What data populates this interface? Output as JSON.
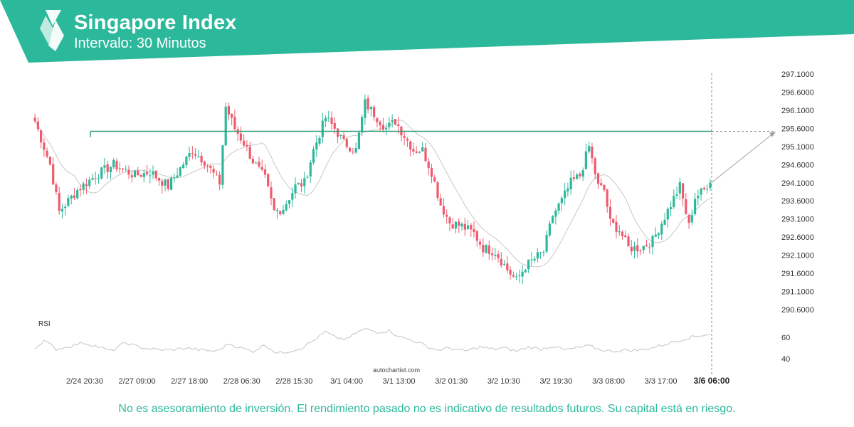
{
  "header": {
    "title": "Singapore Index",
    "subtitle": "Intervalo: 30 Minutos",
    "brand_color": "#2cb99b"
  },
  "chart_data": {
    "type": "candlestick",
    "y_ticks": [
      "297.1000",
      "296.6000",
      "296.1000",
      "295.6000",
      "295.1000",
      "294.6000",
      "294.1000",
      "293.6000",
      "293.1000",
      "292.6000",
      "292.1000",
      "291.6000",
      "291.1000",
      "290.6000"
    ],
    "ylim": [
      290.4,
      297.3
    ],
    "x_ticks": [
      "2/24 20:30",
      "2/27 09:00",
      "2/27 18:00",
      "2/28 06:30",
      "2/28 15:30",
      "3/1 04:00",
      "3/1 13:00",
      "3/2 01:30",
      "3/2 10:30",
      "3/2 19:30",
      "3/3 08:00",
      "3/3 17:00"
    ],
    "x_last_label": "3/6 06:00",
    "resistance_level": 295.52,
    "forecast_target": 295.5,
    "grid": false,
    "up_color": "#2cb99b",
    "down_color": "#ef5b6e",
    "close_anchors": [
      [
        0,
        295.8
      ],
      [
        5,
        294.6
      ],
      [
        8,
        293.3
      ],
      [
        14,
        293.9
      ],
      [
        20,
        294.3
      ],
      [
        26,
        294.6
      ],
      [
        33,
        294.3
      ],
      [
        38,
        294.4
      ],
      [
        44,
        294.0
      ],
      [
        48,
        294.5
      ],
      [
        52,
        295.0
      ],
      [
        56,
        294.7
      ],
      [
        61,
        294.1
      ],
      [
        63,
        296.2
      ],
      [
        66,
        295.6
      ],
      [
        69,
        295.2
      ],
      [
        72,
        294.7
      ],
      [
        76,
        294.2
      ],
      [
        79,
        293.3
      ],
      [
        82,
        293.4
      ],
      [
        86,
        294.0
      ],
      [
        89,
        294.1
      ],
      [
        92,
        295.0
      ],
      [
        96,
        295.9
      ],
      [
        99,
        295.6
      ],
      [
        102,
        295.2
      ],
      [
        106,
        295.0
      ],
      [
        109,
        296.3
      ],
      [
        112,
        296.0
      ],
      [
        116,
        295.6
      ],
      [
        119,
        295.8
      ],
      [
        122,
        295.4
      ],
      [
        125,
        295.0
      ],
      [
        128,
        295.0
      ],
      [
        131,
        294.4
      ],
      [
        134,
        293.5
      ],
      [
        137,
        293.0
      ],
      [
        141,
        292.9
      ],
      [
        145,
        292.7
      ],
      [
        148,
        292.3
      ],
      [
        152,
        292.2
      ],
      [
        156,
        291.7
      ],
      [
        159,
        291.4
      ],
      [
        162,
        291.8
      ],
      [
        165,
        292.0
      ],
      [
        168,
        292.2
      ],
      [
        171,
        293.2
      ],
      [
        174,
        293.6
      ],
      [
        177,
        294.1
      ],
      [
        180,
        294.3
      ],
      [
        183,
        295.1
      ],
      [
        186,
        294.0
      ],
      [
        188,
        293.9
      ],
      [
        190,
        293.0
      ],
      [
        193,
        292.8
      ],
      [
        196,
        292.3
      ],
      [
        200,
        292.3
      ],
      [
        204,
        292.5
      ],
      [
        207,
        293.0
      ],
      [
        210,
        293.5
      ],
      [
        213,
        294.0
      ],
      [
        216,
        292.9
      ],
      [
        218,
        293.7
      ],
      [
        221,
        293.9
      ],
      [
        223,
        294.2
      ]
    ],
    "rsi": {
      "label": "RSI",
      "levels": [
        60,
        40
      ],
      "anchors": [
        [
          0,
          50
        ],
        [
          3,
          57
        ],
        [
          7,
          49
        ],
        [
          12,
          52
        ],
        [
          16,
          55
        ],
        [
          20,
          52
        ],
        [
          25,
          47
        ],
        [
          30,
          55
        ],
        [
          33,
          52
        ],
        [
          38,
          49
        ],
        [
          44,
          48
        ],
        [
          50,
          50
        ],
        [
          55,
          48
        ],
        [
          60,
          47
        ],
        [
          64,
          54
        ],
        [
          68,
          50
        ],
        [
          72,
          47
        ],
        [
          76,
          53
        ],
        [
          80,
          45
        ],
        [
          84,
          47
        ],
        [
          88,
          50
        ],
        [
          92,
          57
        ],
        [
          96,
          65
        ],
        [
          99,
          60
        ],
        [
          103,
          58
        ],
        [
          106,
          64
        ],
        [
          109,
          68
        ],
        [
          113,
          65
        ],
        [
          117,
          66
        ],
        [
          121,
          60
        ],
        [
          125,
          57
        ],
        [
          129,
          52
        ],
        [
          133,
          48
        ],
        [
          137,
          50
        ],
        [
          142,
          47
        ],
        [
          147,
          51
        ],
        [
          151,
          49
        ],
        [
          155,
          50
        ],
        [
          159,
          47
        ],
        [
          163,
          51
        ],
        [
          167,
          49
        ],
        [
          171,
          52
        ],
        [
          175,
          48
        ],
        [
          179,
          50
        ],
        [
          183,
          52
        ],
        [
          186,
          49
        ],
        [
          190,
          47
        ],
        [
          195,
          48
        ],
        [
          200,
          48
        ],
        [
          205,
          51
        ],
        [
          210,
          55
        ],
        [
          215,
          59
        ],
        [
          220,
          62
        ],
        [
          223,
          63
        ]
      ]
    },
    "watermark": "autochartist.com"
  },
  "disclaimer": "No es asesoramiento de inversión. El rendimiento pasado no es indicativo de resultados futuros. Su capital está en riesgo."
}
